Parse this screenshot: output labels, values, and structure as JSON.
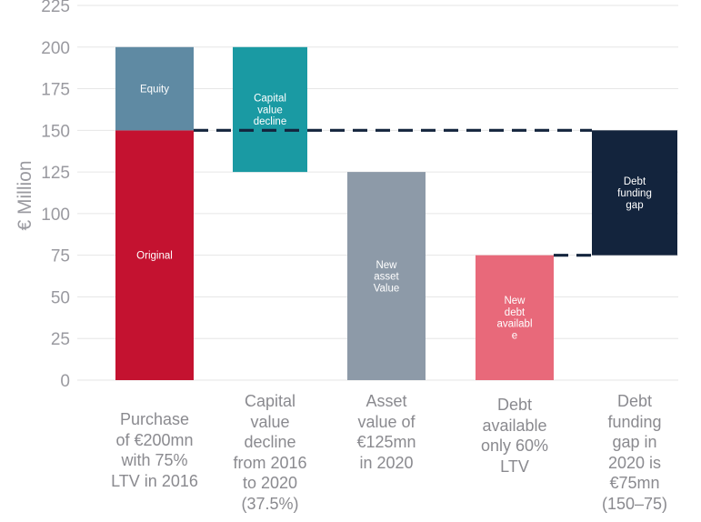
{
  "chart_data": {
    "type": "bar",
    "subtype": "waterfall",
    "ylabel": "€ Million",
    "ylim": [
      0,
      225
    ],
    "yticks": [
      0,
      25,
      50,
      75,
      100,
      125,
      150,
      175,
      200,
      225
    ],
    "grid": true,
    "categories": [
      "Purchase\nof €200mn\nwith 75%\nLTV in 2016",
      "Capital\nvalue\ndecline\nfrom 2016\nto 2020\n(37.5%)",
      "Asset\nvalue of\n€125mn\nin 2020",
      "Debt\navailable\nonly 60%\nLTV",
      "Debt\nfunding\ngap in\n2020 is\n€75mn\n(150–75)"
    ],
    "segments": [
      {
        "category_index": 0,
        "label": "Original",
        "bottom": 0,
        "top": 150,
        "color": "#c41230"
      },
      {
        "category_index": 0,
        "label": "Equity",
        "bottom": 150,
        "top": 200,
        "color": "#5f8aa3"
      },
      {
        "category_index": 1,
        "label": "Capital\nvalue\ndecline",
        "bottom": 125,
        "top": 200,
        "color": "#1a9aa3"
      },
      {
        "category_index": 2,
        "label": "New\nasset\nValue",
        "bottom": 0,
        "top": 125,
        "color": "#8d9aa8"
      },
      {
        "category_index": 3,
        "label": "New\ndebt\navailabl\ne",
        "bottom": 0,
        "top": 75,
        "color": "#e8697a"
      },
      {
        "category_index": 4,
        "label": "Debt\nfunding\ngap",
        "bottom": 75,
        "top": 150,
        "color": "#13243d"
      }
    ],
    "reference_lines": [
      {
        "value": 150,
        "from_category": 0,
        "to_category": 4,
        "style": "dashed"
      },
      {
        "value": 75,
        "from_category": 3,
        "to_category": 4,
        "style": "dashed"
      }
    ]
  }
}
